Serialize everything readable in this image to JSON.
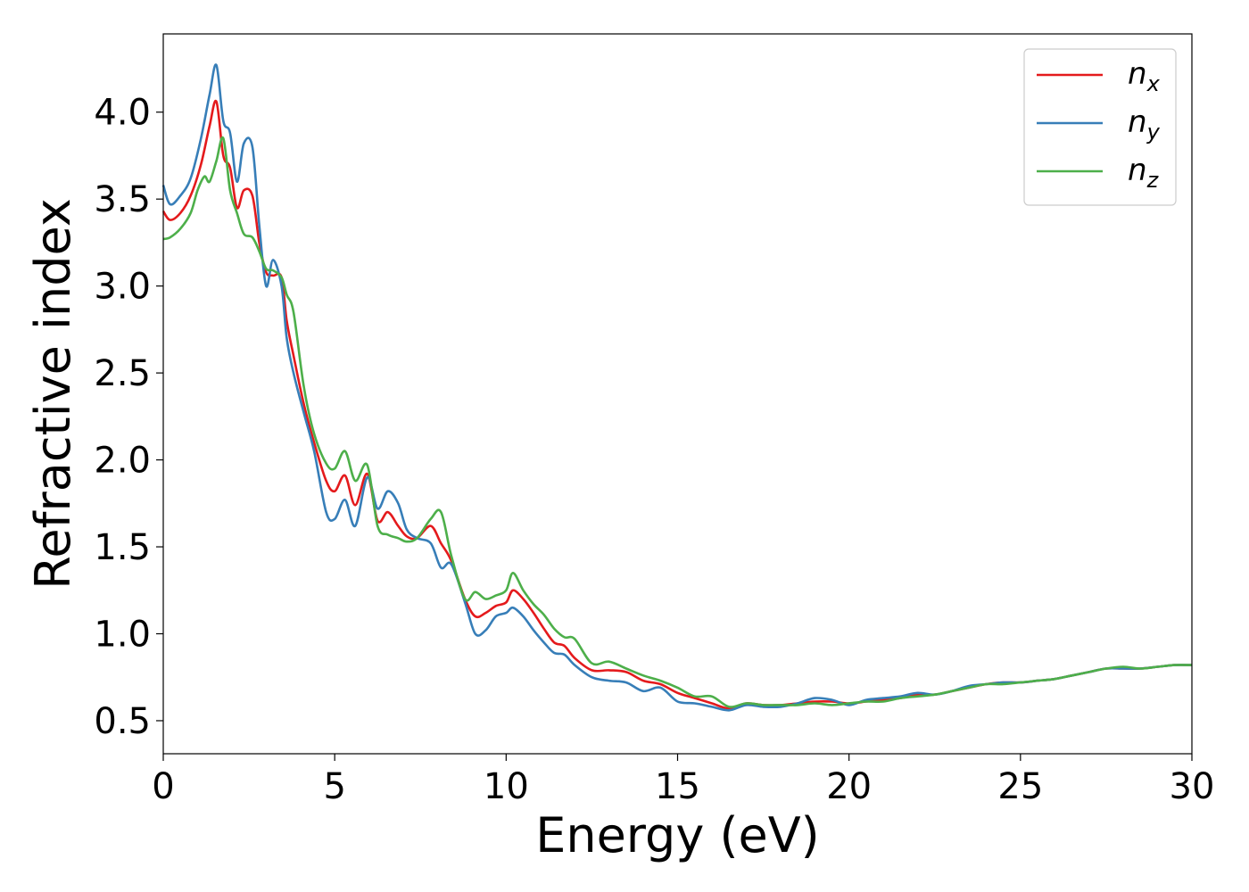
{
  "chart_data": {
    "type": "line",
    "xlabel": "Energy (eV)",
    "ylabel": "Refractive index",
    "xlim": [
      0,
      30
    ],
    "ylim": [
      0.31,
      4.45
    ],
    "xticks": [
      0,
      5,
      10,
      15,
      20,
      25,
      30
    ],
    "xtick_labels": [
      "0",
      "5",
      "10",
      "15",
      "20",
      "25",
      "30"
    ],
    "yticks": [
      0.5,
      1.0,
      1.5,
      2.0,
      2.5,
      3.0,
      3.5,
      4.0
    ],
    "ytick_labels": [
      "0.5",
      "1.0",
      "1.5",
      "2.0",
      "2.5",
      "3.0",
      "3.5",
      "4.0"
    ],
    "grid": false,
    "legend_position": "top-right",
    "series": [
      {
        "name": "n_x",
        "base": "n",
        "sub": "x",
        "color": "#e41a1c",
        "x": [
          0,
          0.2,
          0.5,
          0.8,
          1.1,
          1.35,
          1.55,
          1.75,
          1.95,
          2.15,
          2.35,
          2.6,
          2.8,
          3.0,
          3.2,
          3.45,
          3.6,
          3.8,
          4.1,
          4.4,
          4.75,
          5.0,
          5.3,
          5.6,
          5.95,
          6.25,
          6.55,
          6.85,
          7.1,
          7.4,
          7.8,
          8.1,
          8.4,
          8.8,
          9.1,
          9.4,
          9.7,
          10.0,
          10.2,
          10.5,
          10.8,
          11.1,
          11.4,
          11.7,
          12.0,
          12.5,
          13.0,
          13.5,
          14.0,
          14.5,
          15.0,
          15.5,
          16.0,
          16.5,
          17.0,
          17.5,
          18.0,
          18.5,
          19.0,
          19.5,
          20.0,
          20.5,
          21.0,
          21.5,
          22.0,
          22.5,
          23.0,
          23.5,
          24.0,
          24.5,
          25.0,
          25.5,
          26.0,
          26.5,
          27.0,
          27.5,
          28.0,
          28.5,
          29.0,
          29.5,
          30.0
        ],
        "y": [
          3.43,
          3.38,
          3.42,
          3.52,
          3.7,
          3.92,
          4.06,
          3.75,
          3.68,
          3.45,
          3.55,
          3.52,
          3.25,
          3.08,
          3.06,
          3.05,
          2.8,
          2.6,
          2.32,
          2.1,
          1.88,
          1.82,
          1.91,
          1.74,
          1.92,
          1.65,
          1.7,
          1.62,
          1.56,
          1.55,
          1.62,
          1.52,
          1.42,
          1.2,
          1.1,
          1.12,
          1.16,
          1.18,
          1.25,
          1.2,
          1.12,
          1.03,
          0.95,
          0.93,
          0.86,
          0.79,
          0.79,
          0.78,
          0.73,
          0.71,
          0.66,
          0.63,
          0.6,
          0.57,
          0.6,
          0.59,
          0.59,
          0.6,
          0.61,
          0.61,
          0.6,
          0.61,
          0.62,
          0.63,
          0.65,
          0.65,
          0.67,
          0.69,
          0.71,
          0.72,
          0.72,
          0.73,
          0.74,
          0.76,
          0.78,
          0.8,
          0.8,
          0.8,
          0.81,
          0.82,
          0.82
        ]
      },
      {
        "name": "n_y",
        "base": "n",
        "sub": "y",
        "color": "#377eb8",
        "x": [
          0,
          0.2,
          0.5,
          0.8,
          1.1,
          1.35,
          1.55,
          1.75,
          1.95,
          2.15,
          2.35,
          2.6,
          2.8,
          3.0,
          3.2,
          3.45,
          3.6,
          3.8,
          4.1,
          4.4,
          4.75,
          5.0,
          5.3,
          5.6,
          5.95,
          6.25,
          6.55,
          6.85,
          7.1,
          7.4,
          7.8,
          8.1,
          8.4,
          8.8,
          9.1,
          9.4,
          9.7,
          10.0,
          10.2,
          10.5,
          10.8,
          11.1,
          11.4,
          11.7,
          12.0,
          12.5,
          13.0,
          13.5,
          14.0,
          14.5,
          15.0,
          15.5,
          16.0,
          16.5,
          17.0,
          17.5,
          18.0,
          18.5,
          19.0,
          19.5,
          20.0,
          20.5,
          21.0,
          21.5,
          22.0,
          22.5,
          23.0,
          23.5,
          24.0,
          24.5,
          25.0,
          25.5,
          26.0,
          26.5,
          27.0,
          27.5,
          28.0,
          28.5,
          29.0,
          29.5,
          30.0
        ],
        "y": [
          3.58,
          3.47,
          3.52,
          3.62,
          3.85,
          4.1,
          4.27,
          3.95,
          3.88,
          3.6,
          3.82,
          3.8,
          3.35,
          3.0,
          3.15,
          3.0,
          2.7,
          2.5,
          2.27,
          2.05,
          1.7,
          1.66,
          1.77,
          1.62,
          1.9,
          1.72,
          1.82,
          1.75,
          1.6,
          1.55,
          1.52,
          1.38,
          1.4,
          1.18,
          1.0,
          1.02,
          1.1,
          1.12,
          1.15,
          1.1,
          1.02,
          0.95,
          0.89,
          0.88,
          0.82,
          0.75,
          0.73,
          0.72,
          0.67,
          0.69,
          0.61,
          0.6,
          0.58,
          0.56,
          0.59,
          0.58,
          0.58,
          0.6,
          0.63,
          0.62,
          0.59,
          0.62,
          0.63,
          0.64,
          0.66,
          0.65,
          0.67,
          0.7,
          0.71,
          0.72,
          0.72,
          0.73,
          0.74,
          0.76,
          0.78,
          0.8,
          0.8,
          0.8,
          0.81,
          0.82,
          0.82
        ]
      },
      {
        "name": "n_z",
        "base": "n",
        "sub": "z",
        "color": "#4daf4a",
        "x": [
          0,
          0.2,
          0.5,
          0.8,
          1.0,
          1.2,
          1.35,
          1.55,
          1.75,
          1.95,
          2.15,
          2.35,
          2.6,
          2.8,
          3.0,
          3.2,
          3.45,
          3.6,
          3.8,
          4.1,
          4.4,
          4.75,
          5.0,
          5.3,
          5.6,
          5.95,
          6.25,
          6.55,
          6.85,
          7.1,
          7.4,
          7.8,
          8.1,
          8.4,
          8.8,
          9.1,
          9.4,
          9.7,
          10.0,
          10.2,
          10.5,
          10.8,
          11.1,
          11.4,
          11.7,
          12.0,
          12.5,
          13.0,
          13.5,
          14.0,
          14.5,
          15.0,
          15.5,
          16.0,
          16.5,
          17.0,
          17.5,
          18.0,
          18.5,
          19.0,
          19.5,
          20.0,
          20.5,
          21.0,
          21.5,
          22.0,
          22.5,
          23.0,
          23.5,
          24.0,
          24.5,
          25.0,
          25.5,
          26.0,
          26.5,
          27.0,
          27.5,
          28.0,
          28.5,
          29.0,
          29.5,
          30.0
        ],
        "y": [
          3.27,
          3.28,
          3.33,
          3.42,
          3.55,
          3.63,
          3.6,
          3.72,
          3.85,
          3.55,
          3.42,
          3.3,
          3.28,
          3.2,
          3.1,
          3.09,
          3.05,
          2.95,
          2.85,
          2.42,
          2.15,
          1.98,
          1.95,
          2.05,
          1.88,
          1.97,
          1.62,
          1.57,
          1.55,
          1.53,
          1.55,
          1.66,
          1.7,
          1.45,
          1.2,
          1.24,
          1.2,
          1.22,
          1.25,
          1.35,
          1.25,
          1.17,
          1.11,
          1.03,
          0.98,
          0.97,
          0.83,
          0.84,
          0.8,
          0.76,
          0.73,
          0.69,
          0.64,
          0.64,
          0.58,
          0.6,
          0.59,
          0.59,
          0.59,
          0.6,
          0.59,
          0.6,
          0.61,
          0.61,
          0.63,
          0.64,
          0.65,
          0.67,
          0.69,
          0.71,
          0.71,
          0.72,
          0.73,
          0.74,
          0.76,
          0.78,
          0.8,
          0.81,
          0.8,
          0.81,
          0.82,
          0.82
        ]
      }
    ]
  }
}
